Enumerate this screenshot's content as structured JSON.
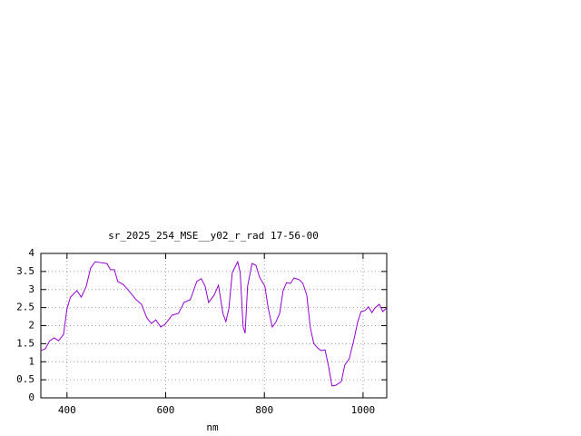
{
  "chart_data": {
    "type": "line",
    "title": "sr_2025_254_MSE__y02_r_rad 17-56-00",
    "x_label": "nm",
    "color": "#9400d3",
    "grid": true,
    "xlim": [
      347,
      1048
    ],
    "ylim": [
      0,
      4
    ],
    "xticks": [
      400,
      600,
      800,
      1000
    ],
    "yticks": [
      0,
      0.5,
      1,
      1.5,
      2,
      2.5,
      3,
      3.5,
      4
    ],
    "x": [
      347,
      356,
      365,
      374,
      383,
      393,
      400,
      407,
      420,
      429,
      439,
      448,
      457,
      466,
      481,
      488,
      496,
      503,
      514,
      525,
      540,
      551,
      562,
      571,
      580,
      590,
      599,
      613,
      626,
      637,
      650,
      663,
      672,
      680,
      687,
      698,
      707,
      716,
      722,
      728,
      735,
      746,
      751,
      757,
      761,
      766,
      775,
      783,
      790,
      801,
      808,
      816,
      823,
      831,
      838,
      845,
      853,
      860,
      871,
      878,
      886,
      893,
      900,
      908,
      915,
      923,
      930,
      937,
      945,
      956,
      963,
      972,
      981,
      989,
      996,
      1004,
      1011,
      1018,
      1024,
      1033,
      1040,
      1048
    ],
    "values": [
      1.31,
      1.36,
      1.58,
      1.66,
      1.58,
      1.76,
      2.47,
      2.79,
      2.97,
      2.79,
      3.09,
      3.6,
      3.77,
      3.75,
      3.72,
      3.55,
      3.55,
      3.22,
      3.14,
      2.97,
      2.72,
      2.59,
      2.21,
      2.06,
      2.16,
      1.96,
      2.04,
      2.29,
      2.34,
      2.64,
      2.72,
      3.22,
      3.3,
      3.09,
      2.64,
      2.84,
      3.12,
      2.34,
      2.11,
      2.47,
      3.47,
      3.77,
      3.47,
      1.96,
      1.79,
      3.09,
      3.72,
      3.67,
      3.35,
      3.09,
      2.47,
      1.96,
      2.09,
      2.34,
      2.97,
      3.19,
      3.17,
      3.32,
      3.27,
      3.17,
      2.84,
      1.96,
      1.51,
      1.38,
      1.31,
      1.33,
      0.88,
      0.33,
      0.35,
      0.45,
      0.91,
      1.08,
      1.58,
      2.09,
      2.39,
      2.42,
      2.52,
      2.36,
      2.49,
      2.59,
      2.39,
      2.49
    ]
  }
}
